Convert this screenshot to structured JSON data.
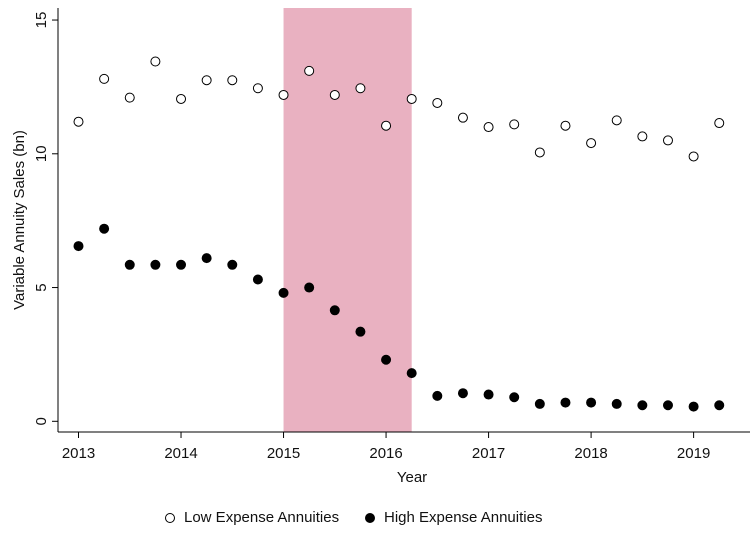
{
  "chart_data": {
    "type": "scatter",
    "x_label": "Year",
    "y_label": "Variable Annuity Sales (bn)",
    "xlim": [
      2012.8,
      2019.55
    ],
    "ylim": [
      -0.4,
      15.45
    ],
    "xticks": [
      2013,
      2014,
      2015,
      2016,
      2017,
      2018,
      2019
    ],
    "yticks": [
      0,
      5,
      10,
      15
    ],
    "legend": "bottom",
    "shaded_region": {
      "x": [
        2015,
        2016.25
      ],
      "color": "#e9b1c1"
    },
    "x": [
      2013,
      2013.25,
      2013.5,
      2013.75,
      2014,
      2014.25,
      2014.5,
      2014.75,
      2015,
      2015.25,
      2015.5,
      2015.75,
      2016,
      2016.25,
      2016.5,
      2016.75,
      2017,
      2017.25,
      2017.5,
      2017.75,
      2018,
      2018.25,
      2018.5,
      2018.75,
      2019,
      2019.25
    ],
    "series": [
      {
        "name": "Low Expense Annuities",
        "color": "#000000",
        "marker": "hollow",
        "values": [
          11.2,
          12.8,
          12.1,
          13.45,
          12.05,
          12.75,
          12.75,
          12.45,
          12.2,
          13.1,
          12.2,
          12.45,
          11.05,
          12.05,
          11.9,
          11.35,
          11.0,
          11.1,
          10.05,
          11.05,
          10.4,
          11.25,
          10.65,
          10.5,
          9.9,
          11.15
        ]
      },
      {
        "name": "High Expense Annuities",
        "color": "#000000",
        "marker": "filled",
        "values": [
          6.55,
          7.2,
          5.85,
          5.85,
          5.85,
          6.1,
          5.85,
          5.3,
          4.8,
          5.0,
          4.15,
          3.35,
          2.3,
          1.8,
          0.95,
          1.05,
          1.0,
          0.9,
          0.65,
          0.7,
          0.7,
          0.65,
          0.6,
          0.6,
          0.55,
          0.6
        ]
      }
    ]
  }
}
